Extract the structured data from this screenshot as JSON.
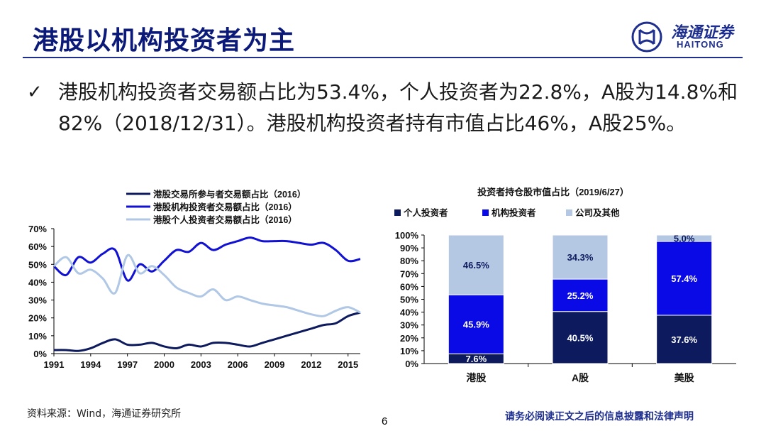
{
  "header": {
    "title": "港股以机构投资者为主",
    "logo_cn": "海通证券",
    "logo_en": "HAITONG",
    "brand_color": "#1e2f8f"
  },
  "bullet": {
    "icon": "check-icon",
    "text": "港股机构投资者交易额占比为53.4%，个人投资者为22.8%，A股为14.8%和82%（2018/12/31）。港股机构投资者持有市值占比46%，A股25%。"
  },
  "chart_data": [
    {
      "type": "line",
      "title": "",
      "x": [
        1991,
        1992,
        1993,
        1994,
        1995,
        1996,
        1997,
        1998,
        1999,
        2000,
        2001,
        2002,
        2003,
        2004,
        2005,
        2006,
        2007,
        2008,
        2009,
        2010,
        2011,
        2012,
        2013,
        2014,
        2015,
        2016
      ],
      "x_ticks": [
        "1991",
        "1994",
        "1997",
        "2000",
        "2003",
        "2006",
        "2009",
        "2012",
        "2015"
      ],
      "y_ticks": [
        "0%",
        "10%",
        "20%",
        "30%",
        "40%",
        "50%",
        "60%",
        "70%"
      ],
      "ylim": [
        0,
        70
      ],
      "series": [
        {
          "name": "港股交易所参与者交易额占比（2016）",
          "color": "#0d1b5e",
          "values": [
            2,
            2,
            1.5,
            3,
            6,
            8,
            5,
            5,
            6,
            4,
            3,
            5,
            4,
            6,
            6,
            5,
            4,
            6,
            8,
            10,
            12,
            14,
            16,
            17,
            21,
            23
          ]
        },
        {
          "name": "港股机构投资者交易额占比（2016）",
          "color": "#1111d4",
          "values": [
            49,
            44,
            54,
            51,
            56,
            58,
            41,
            50,
            46,
            52,
            58,
            57,
            62,
            58,
            61,
            63,
            65,
            63,
            63,
            63,
            62,
            61,
            62,
            58,
            52,
            53
          ]
        },
        {
          "name": "港股个人投资者交易额占比（2016）",
          "color": "#b0c8e6",
          "values": [
            49,
            54,
            45,
            47,
            42,
            34,
            55,
            45,
            49,
            44,
            37,
            34,
            32,
            36,
            30,
            32,
            30,
            28,
            27,
            26,
            24,
            22,
            21,
            24,
            26,
            23
          ]
        }
      ]
    },
    {
      "type": "bar",
      "title": "投资者持仓股市值占比（2019/6/27）",
      "stacked": true,
      "categories": [
        "港股",
        "A股",
        "美股"
      ],
      "y_ticks": [
        "0%",
        "10%",
        "20%",
        "30%",
        "40%",
        "50%",
        "60%",
        "70%",
        "80%",
        "90%",
        "100%"
      ],
      "ylim": [
        0,
        100
      ],
      "series": [
        {
          "name": "个人投资者",
          "color": "#0d1b5e",
          "values": [
            7.6,
            40.5,
            37.6
          ],
          "labels": [
            "7.6%",
            "40.5%",
            "37.6%"
          ]
        },
        {
          "name": "机构投资者",
          "color": "#0a0ae6",
          "values": [
            45.9,
            25.2,
            57.4
          ],
          "labels": [
            "45.9%",
            "25.2%",
            "57.4%"
          ]
        },
        {
          "name": "公司及其他",
          "color": "#b4c8e4",
          "values": [
            46.5,
            34.3,
            5.0
          ],
          "labels": [
            "46.5%",
            "34.3%",
            "5.0%"
          ]
        }
      ]
    }
  ],
  "footer": {
    "source": "资料来源：Wind，海通证券研究所",
    "page": "6",
    "disclaimer": "请务必阅读正文之后的信息披露和法律声明"
  }
}
